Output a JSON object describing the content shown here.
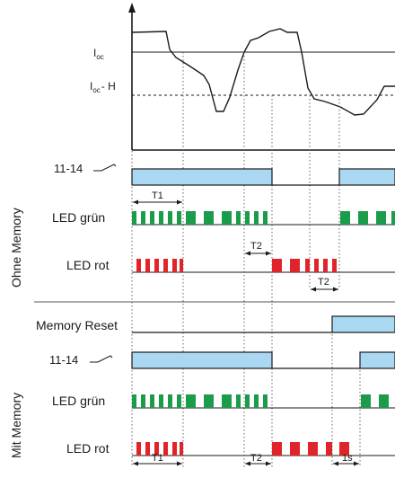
{
  "labels": {
    "ioc_main": "I",
    "ioc_sub": "oc",
    "ioch_main": "I",
    "ioch_sub": "oc",
    "ioch_suffix": "- H",
    "section_top": "Ohne Memory",
    "section_bottom": "Mit Memory",
    "contact_top": "11-14",
    "contact_bottom": "11-14",
    "led_green_top": "LED grün",
    "led_red_top": "LED rot",
    "memory_reset": "Memory Reset",
    "led_green_bottom": "LED grün",
    "led_red_bottom": "LED rot"
  },
  "timing": {
    "t1_top": "T1",
    "t2_top_a": "T2",
    "t2_top_b": "T2",
    "t1_bottom": "T1",
    "t2_bottom": "T2",
    "one_s": "1s"
  },
  "colors": {
    "relay_fill": "#aad8f2",
    "led_green": "#1a9c4a",
    "led_red": "#e0242b",
    "line": "#1a1a1a",
    "dotted": "#555555"
  }
}
